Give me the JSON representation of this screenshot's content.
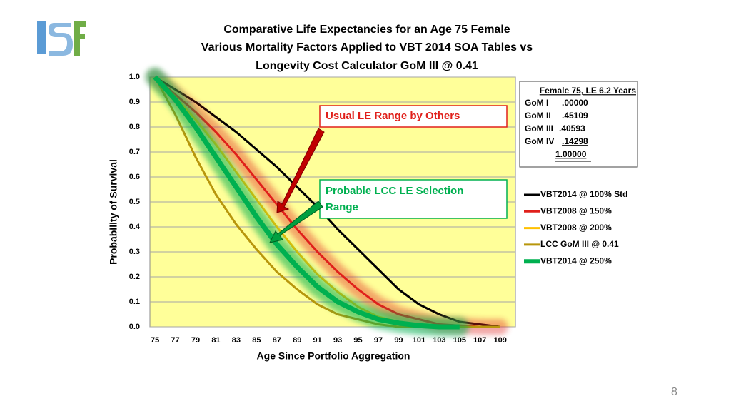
{
  "chart_data": {
    "type": "line",
    "title": [
      "Comparative Life Expectancies for an Age 75 Female",
      "Various Mortality Factors Applied to VBT 2014 SOA Tables vs",
      "Longevity Cost Calculator GoM III @ 0.41"
    ],
    "x_label": "Age Since Portfolio Aggregation",
    "y_label": "Probability of Survival",
    "x": [
      75,
      77,
      79,
      81,
      83,
      85,
      87,
      89,
      91,
      93,
      95,
      97,
      99,
      101,
      103,
      105,
      107,
      109
    ],
    "xlim": [
      74.5,
      110.5
    ],
    "xticks": [
      75,
      77,
      79,
      81,
      83,
      85,
      87,
      89,
      91,
      93,
      95,
      97,
      99,
      101,
      103,
      105,
      107,
      109
    ],
    "ylim": [
      0,
      1
    ],
    "yticks": [
      {
        "value": 0,
        "label": "0.0"
      },
      0.1,
      0.2,
      0.3,
      0.4,
      0.5,
      0.6,
      0.7,
      0.8,
      0.9,
      {
        "value": 1,
        "label": "1.0"
      }
    ],
    "grid": true,
    "plot_background": "#ffff99",
    "series": [
      {
        "name": "VBT2014 @ 100% Std",
        "color": "#000000",
        "values": [
          1.0,
          0.95,
          0.9,
          0.84,
          0.78,
          0.71,
          0.64,
          0.56,
          0.48,
          0.39,
          0.31,
          0.23,
          0.15,
          0.09,
          0.05,
          0.02,
          0.01,
          0.0
        ]
      },
      {
        "name": "VBT2008 @ 150%",
        "color": "#e0201b",
        "glow": true,
        "values": [
          1.0,
          0.93,
          0.86,
          0.78,
          0.69,
          0.59,
          0.49,
          0.39,
          0.3,
          0.22,
          0.15,
          0.09,
          0.05,
          0.03,
          0.01,
          0.005,
          0.0,
          0.0
        ]
      },
      {
        "name": "VBT2008 @ 200%",
        "color": "#ffc000",
        "values": [
          1.0,
          0.92,
          0.83,
          0.73,
          0.62,
          0.51,
          0.4,
          0.3,
          0.21,
          0.14,
          0.08,
          0.04,
          0.02,
          0.01,
          0.0,
          0.0,
          0.0,
          0.0
        ]
      },
      {
        "name": "LCC GoM III @ 0.41",
        "color": "#b8960c",
        "values": [
          1.0,
          0.85,
          0.68,
          0.53,
          0.41,
          0.31,
          0.22,
          0.15,
          0.09,
          0.05,
          0.03,
          0.01,
          0.0,
          0.0,
          0.0,
          0.0,
          0.0,
          0.0
        ]
      },
      {
        "name": "VBT2014 @ 250%",
        "color": "#00b050",
        "glow": true,
        "values": [
          1.0,
          0.91,
          0.8,
          0.68,
          0.56,
          0.44,
          0.33,
          0.24,
          0.16,
          0.1,
          0.06,
          0.03,
          0.015,
          0.005,
          0.0,
          0.0,
          null,
          null
        ]
      }
    ],
    "annotations": [
      "Usual LE Range by Others",
      "Probable LCC LE Selection Range"
    ],
    "factor_box": {
      "heading": "Female 75, LE 6.2 Years",
      "rows": [
        [
          "GoM I",
          ".00000"
        ],
        [
          "GoM II",
          ".45109"
        ],
        [
          "GoM III",
          ".40593"
        ],
        [
          "GoM IV",
          ".14298"
        ]
      ],
      "total": "1.00000"
    }
  },
  "slide_number": "8"
}
